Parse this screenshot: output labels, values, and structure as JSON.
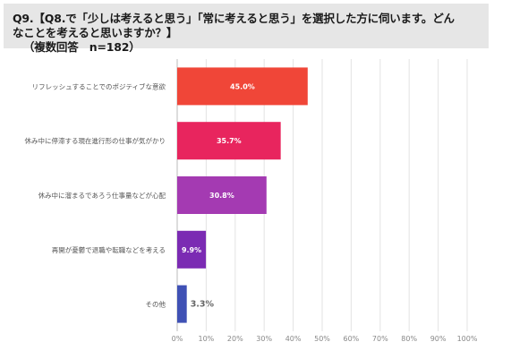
{
  "question": {
    "line1": "Q9.【Q8.で「少しは考えると思う」「常に考えると思う」を選択した方に伺います。どん",
    "line2": "なことを考えると思いますか？】",
    "line3": "（複数回答　n=182）"
  },
  "chart_data": {
    "type": "bar",
    "orientation": "horizontal",
    "title": "",
    "xlabel": "",
    "ylabel": "",
    "xlim": [
      0,
      100
    ],
    "grid": true,
    "x_ticks": [
      0,
      10,
      20,
      30,
      40,
      50,
      60,
      70,
      80,
      90,
      100
    ],
    "x_tick_labels": [
      "0%",
      "10%",
      "20%",
      "30%",
      "40%",
      "50%",
      "60%",
      "70%",
      "80%",
      "90%",
      "100%"
    ],
    "categories": [
      "リフレッシュすることでのポジティブな意欲",
      "休み中に停滞する現在進行形の仕事が気がかり",
      "休み中に溜まるであろう仕事量などが心配",
      "再開が憂鬱で退職や転職などを考える",
      "その他"
    ],
    "values": [
      45.0,
      35.7,
      30.8,
      9.9,
      3.3
    ],
    "value_labels": [
      "45.0%",
      "35.7%",
      "30.8%",
      "9.9%",
      "3.3%"
    ],
    "colors": [
      "#f04638",
      "#e8255e",
      "#a43ab2",
      "#7b2bb3",
      "#3f51b5"
    ]
  }
}
